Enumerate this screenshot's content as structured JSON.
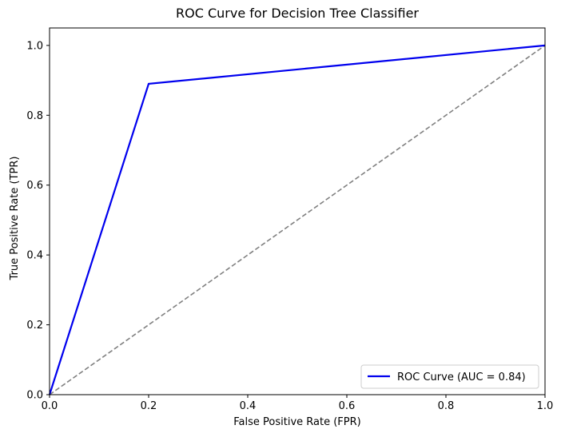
{
  "chart_data": {
    "type": "line",
    "title": "ROC Curve for Decision Tree Classifier",
    "xlabel": "False Positive Rate (FPR)",
    "ylabel": "True Positive Rate (TPR)",
    "xlim": [
      0.0,
      1.0
    ],
    "ylim": [
      0.0,
      1.05
    ],
    "xticks": [
      "0.0",
      "0.2",
      "0.4",
      "0.6",
      "0.8",
      "1.0"
    ],
    "yticks": [
      "0.0",
      "0.2",
      "0.4",
      "0.6",
      "0.8",
      "1.0"
    ],
    "grid": false,
    "legend_position": "lower-right",
    "series": [
      {
        "name": "ROC Curve (AUC = 0.84)",
        "color": "#0000ee",
        "style": "solid",
        "x": [
          0.0,
          0.2,
          1.0
        ],
        "y": [
          0.0,
          0.89,
          1.0
        ]
      },
      {
        "color": "#808080",
        "style": "dashed",
        "x": [
          0.0,
          1.0
        ],
        "y": [
          0.0,
          1.0
        ]
      }
    ]
  }
}
